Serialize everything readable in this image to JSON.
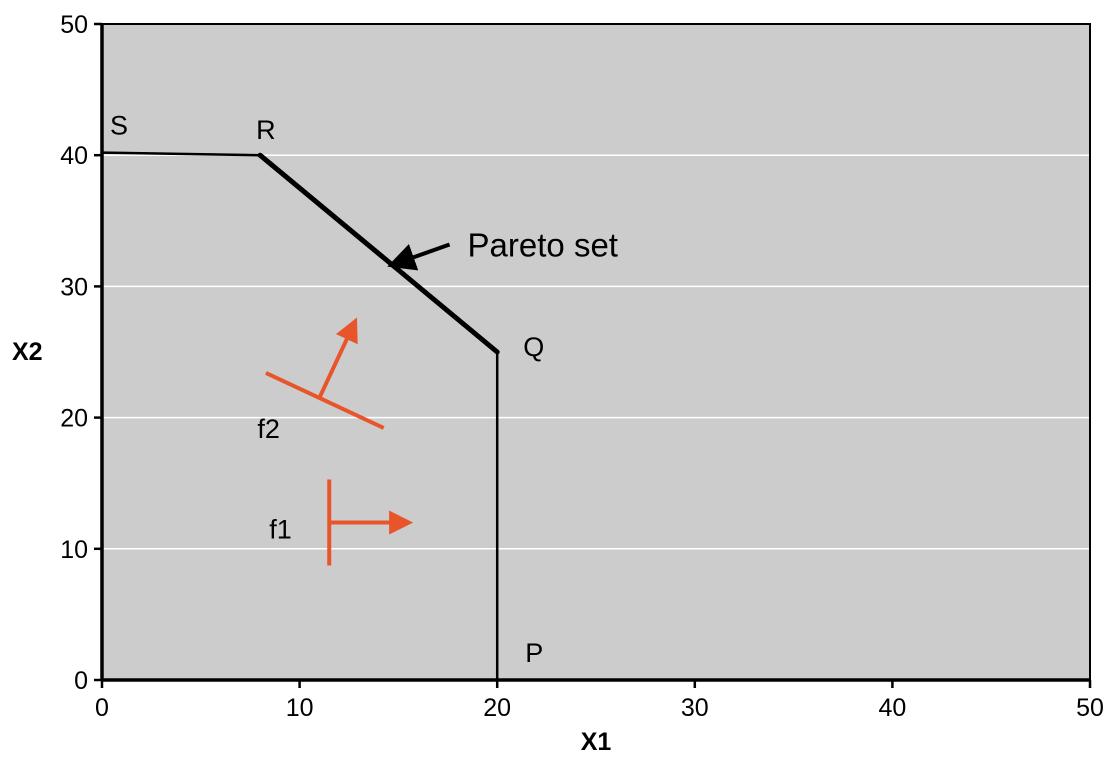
{
  "chart_data": {
    "type": "line",
    "xlabel": "X1",
    "ylabel": "X2",
    "xlim": [
      0,
      50
    ],
    "ylim": [
      0,
      50
    ],
    "xticks": [
      0,
      10,
      20,
      30,
      40,
      50
    ],
    "yticks": [
      0,
      10,
      20,
      30,
      40,
      50
    ],
    "grid": "horizontal",
    "background_color": "#cccccc",
    "series": [
      {
        "style": "boundary",
        "color": "#000000",
        "points": [
          {
            "x": 0,
            "y": 40.2,
            "label": "S"
          },
          {
            "x": 8,
            "y": 40,
            "label": "R"
          },
          {
            "x": 20,
            "y": 25,
            "label": "Q"
          },
          {
            "x": 20,
            "y": 0,
            "label": "P"
          }
        ]
      }
    ],
    "annotations": [
      {
        "text": "Pareto set",
        "target_x": 14.5,
        "target_y": 31.5,
        "text_x": 18.5,
        "text_y": 33.8
      }
    ],
    "objectives": [
      {
        "name": "f1",
        "color": "#e8552b",
        "base_x": 11.5,
        "base_y": 12,
        "direction_x": 4,
        "direction_y": 0
      },
      {
        "name": "f2",
        "color": "#e8552b",
        "base_x": 11,
        "base_y": 21.5,
        "direction_x": 1.8,
        "direction_y": 5.8
      }
    ]
  }
}
